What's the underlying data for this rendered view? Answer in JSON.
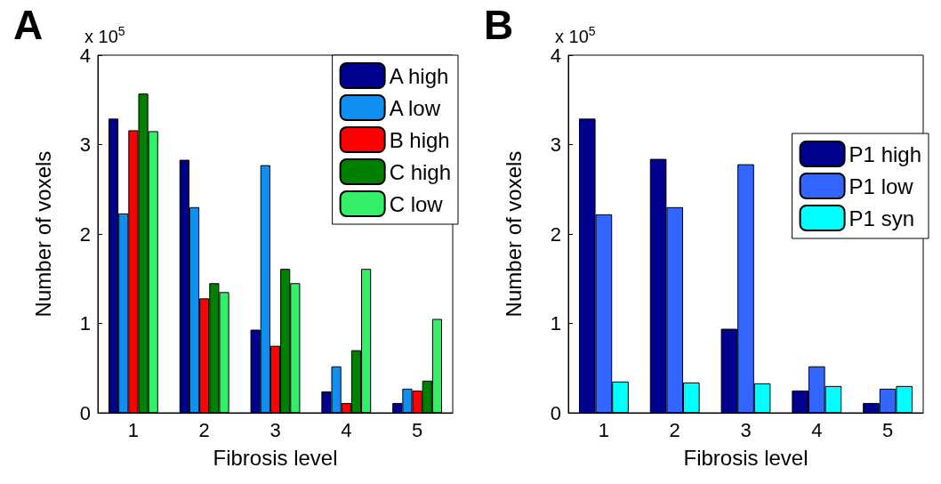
{
  "chart_data": [
    {
      "type": "bar",
      "title": "A",
      "xlabel": "Fibrosis level",
      "ylabel": "Number of voxels",
      "categories": [
        "1",
        "2",
        "3",
        "4",
        "5"
      ],
      "series": [
        {
          "name": "A high",
          "color": "#00008f",
          "values": [
            3.29,
            2.83,
            0.93,
            0.24,
            0.11
          ]
        },
        {
          "name": "A low",
          "color": "#0f8ff0",
          "values": [
            2.23,
            2.3,
            2.77,
            0.52,
            0.27
          ]
        },
        {
          "name": "B high",
          "color": "#ff0000",
          "values": [
            3.16,
            1.28,
            0.75,
            0.11,
            0.25
          ]
        },
        {
          "name": "C high",
          "color": "#007f00",
          "values": [
            3.57,
            1.45,
            1.61,
            0.7,
            0.36
          ]
        },
        {
          "name": "C low",
          "color": "#33ee66",
          "values": [
            3.15,
            1.35,
            1.45,
            1.61,
            1.05
          ]
        }
      ],
      "ylim": [
        0,
        4
      ],
      "yticks": [
        0,
        1,
        2,
        3,
        4
      ],
      "annotations": [
        "x 10$^{5}$"
      ],
      "legend": "top right",
      "grid": false
    },
    {
      "type": "bar",
      "title": "B",
      "xlabel": "Fibrosis level",
      "ylabel": "Number of voxels",
      "categories": [
        "1",
        "2",
        "3",
        "4",
        "5"
      ],
      "series": [
        {
          "name": "P1 high",
          "color": "#00008f",
          "values": [
            3.29,
            2.84,
            0.94,
            0.25,
            0.11
          ]
        },
        {
          "name": "P1 low",
          "color": "#3366ff",
          "values": [
            2.22,
            2.3,
            2.78,
            0.52,
            0.27
          ]
        },
        {
          "name": "P1 syn",
          "color": "#00ffff",
          "values": [
            0.35,
            0.34,
            0.33,
            0.3,
            0.3
          ]
        }
      ],
      "ylim": [
        0,
        4
      ],
      "yticks": [
        0,
        1,
        2,
        3,
        4
      ],
      "annotations": [
        "x 10$^{5}$"
      ],
      "legend": "right",
      "grid": false
    }
  ]
}
